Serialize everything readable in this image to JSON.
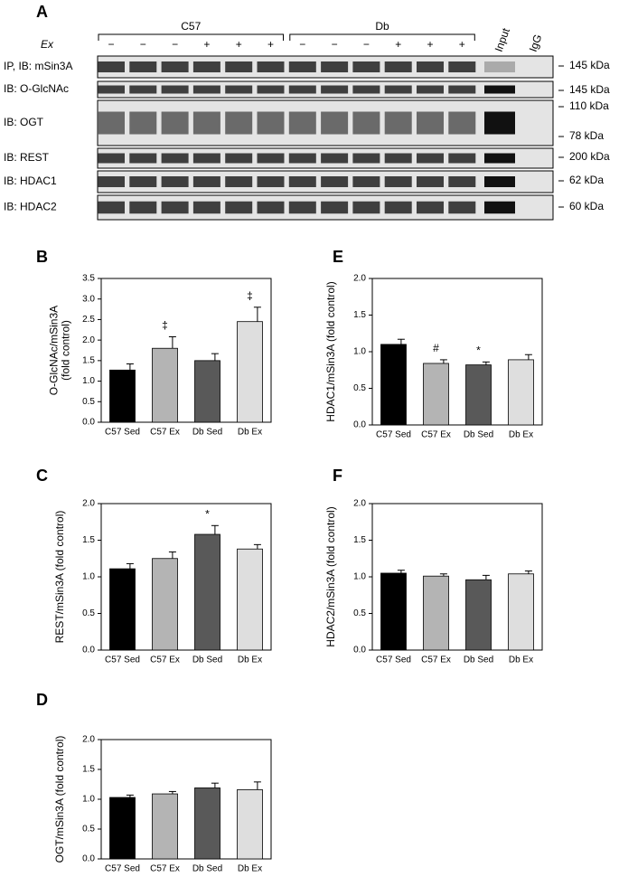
{
  "blot": {
    "panel": "A",
    "groups": [
      "C57",
      "Db"
    ],
    "treatment_label": "Ex",
    "treatments": [
      "−",
      "−",
      "−",
      "+",
      "+",
      "+",
      "−",
      "−",
      "−",
      "+",
      "+",
      "+"
    ],
    "controls": [
      "Input",
      "IgG"
    ],
    "rows": [
      {
        "label": "IP, IB: mSin3A",
        "markers": [
          "145 kDa"
        ]
      },
      {
        "label": "IB: O-GlcNAc",
        "markers": [
          "145 kDa"
        ]
      },
      {
        "label": "IB: OGT",
        "markers": [
          "110 kDa",
          "78 kDa"
        ]
      },
      {
        "label": "IB: REST",
        "markers": [
          "200 kDa"
        ]
      },
      {
        "label": "IB: HDAC1",
        "markers": [
          "62 kDa"
        ]
      },
      {
        "label": "IB: HDAC2",
        "markers": [
          "60 kDa"
        ]
      }
    ]
  },
  "chart_data": [
    {
      "type": "bar",
      "panel": "B",
      "ylabel": [
        "O-GlcNAc/mSin3A",
        "(fold control)"
      ],
      "categories": [
        "C57 Sed",
        "C57 Ex",
        "Db Sed",
        "Db Ex"
      ],
      "values": [
        1.27,
        1.8,
        1.5,
        2.45
      ],
      "errors": [
        0.15,
        0.28,
        0.17,
        0.35
      ],
      "colors": [
        "#000000",
        "#b4b4b4",
        "#595959",
        "#dedede"
      ],
      "annotations": [
        null,
        "‡",
        null,
        "‡"
      ],
      "ylim": [
        0,
        3.5
      ],
      "yticks": [
        {
          "value": 0,
          "label": "0.0"
        },
        {
          "value": 0.5,
          "label": "0.5"
        },
        {
          "value": 1,
          "label": "1.0"
        },
        {
          "value": 1.5,
          "label": "1.5"
        },
        {
          "value": 2,
          "label": "2.0"
        },
        {
          "value": 2.5,
          "label": "2.5"
        },
        {
          "value": 3,
          "label": "3.0"
        },
        {
          "value": 3.5,
          "label": "3.5"
        }
      ]
    },
    {
      "type": "bar",
      "panel": "C",
      "ylabel": [
        "REST/mSin3A (fold control)"
      ],
      "categories": [
        "C57 Sed",
        "C57 Ex",
        "Db Sed",
        "Db Ex"
      ],
      "values": [
        1.11,
        1.25,
        1.58,
        1.38
      ],
      "errors": [
        0.07,
        0.09,
        0.12,
        0.06
      ],
      "colors": [
        "#000000",
        "#b4b4b4",
        "#595959",
        "#dedede"
      ],
      "annotations": [
        null,
        null,
        "*",
        null
      ],
      "ylim": [
        0,
        2
      ],
      "yticks": [
        {
          "value": 0,
          "label": "0.0"
        },
        {
          "value": 0.5,
          "label": "0.5"
        },
        {
          "value": 1,
          "label": "1.0"
        },
        {
          "value": 1.5,
          "label": "1.5"
        },
        {
          "value": 2,
          "label": "2.0"
        }
      ]
    },
    {
      "type": "bar",
      "panel": "D",
      "ylabel": [
        "OGT/mSin3A (fold control)"
      ],
      "categories": [
        "C57 Sed",
        "C57 Ex",
        "Db Sed",
        "Db Ex"
      ],
      "values": [
        1.03,
        1.09,
        1.19,
        1.16
      ],
      "errors": [
        0.04,
        0.04,
        0.08,
        0.13
      ],
      "colors": [
        "#000000",
        "#b4b4b4",
        "#595959",
        "#dedede"
      ],
      "annotations": [
        null,
        null,
        null,
        null
      ],
      "ylim": [
        0,
        2
      ],
      "yticks": [
        {
          "value": 0,
          "label": "0.0"
        },
        {
          "value": 0.5,
          "label": "0.5"
        },
        {
          "value": 1,
          "label": "1.0"
        },
        {
          "value": 1.5,
          "label": "1.5"
        },
        {
          "value": 2,
          "label": "2.0"
        }
      ]
    },
    {
      "type": "bar",
      "panel": "E",
      "ylabel": [
        "HDAC1/mSin3A (fold control)"
      ],
      "categories": [
        "C57 Sed",
        "C57 Ex",
        "Db Sed",
        "Db Ex"
      ],
      "values": [
        1.1,
        0.84,
        0.82,
        0.89
      ],
      "errors": [
        0.07,
        0.05,
        0.04,
        0.07
      ],
      "colors": [
        "#000000",
        "#b4b4b4",
        "#595959",
        "#dedede"
      ],
      "annotations": [
        null,
        "#",
        "*",
        null
      ],
      "ylim": [
        0,
        2
      ],
      "yticks": [
        {
          "value": 0,
          "label": "0.0"
        },
        {
          "value": 0.5,
          "label": "0.5"
        },
        {
          "value": 1,
          "label": "1.0"
        },
        {
          "value": 1.5,
          "label": "1.5"
        },
        {
          "value": 2,
          "label": "2.0"
        }
      ]
    },
    {
      "type": "bar",
      "panel": "F",
      "ylabel": [
        "HDAC2/mSin3A (fold control)"
      ],
      "categories": [
        "C57 Sed",
        "C57 Ex",
        "Db Sed",
        "Db Ex"
      ],
      "values": [
        1.05,
        1.01,
        0.96,
        1.04
      ],
      "errors": [
        0.04,
        0.03,
        0.06,
        0.04
      ],
      "colors": [
        "#000000",
        "#b4b4b4",
        "#595959",
        "#dedede"
      ],
      "annotations": [
        null,
        null,
        null,
        null
      ],
      "ylim": [
        0,
        2
      ],
      "yticks": [
        {
          "value": 0,
          "label": "0.0"
        },
        {
          "value": 0.5,
          "label": "0.5"
        },
        {
          "value": 1,
          "label": "1.0"
        },
        {
          "value": 1.5,
          "label": "1.5"
        },
        {
          "value": 2,
          "label": "2.0"
        }
      ]
    }
  ]
}
